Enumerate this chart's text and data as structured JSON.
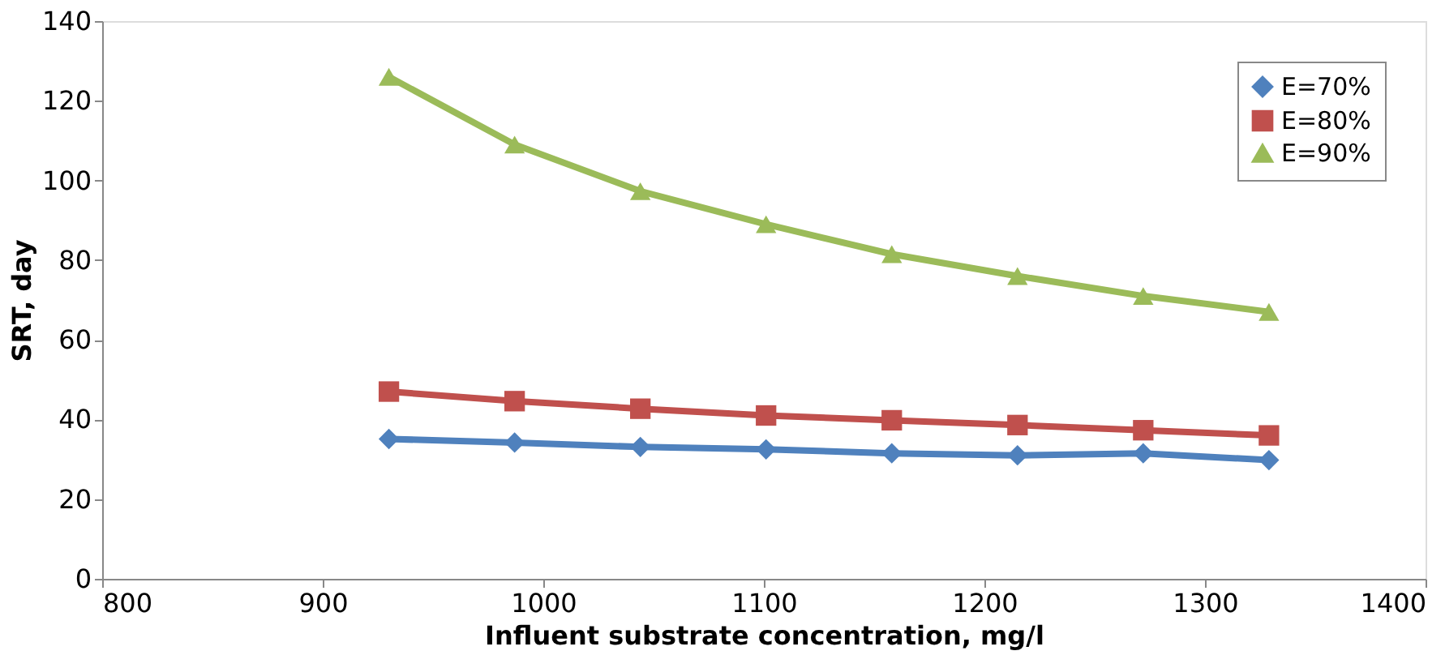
{
  "chart_data": {
    "type": "line",
    "xlabel": "Influent substrate concentration, mg/l",
    "ylabel": "SRT, day",
    "x": [
      930,
      987,
      1044,
      1101,
      1158,
      1215,
      1272,
      1329
    ],
    "series": [
      {
        "name": "E=70%",
        "color": "#4f81bd",
        "marker": "diamond",
        "values": [
          35.1,
          34.2,
          33.1,
          32.5,
          31.5,
          31,
          31.5,
          29.8
        ]
      },
      {
        "name": "E=80%",
        "color": "#c0504d",
        "marker": "square",
        "values": [
          47,
          44.6,
          42.7,
          41,
          39.8,
          38.6,
          37.3,
          36
        ]
      },
      {
        "name": "E=90%",
        "color": "#9bbb59",
        "marker": "triangle",
        "values": [
          126,
          109,
          97.3,
          89,
          81.5,
          76,
          71,
          67
        ]
      }
    ],
    "xlim": [
      800,
      1400
    ],
    "xticks": [
      800,
      900,
      1000,
      1100,
      1200,
      1300,
      1400
    ],
    "ylim": [
      0,
      140
    ],
    "yticks": [
      0,
      20,
      40,
      60,
      80,
      100,
      120,
      140
    ],
    "grid": false,
    "legend": "top right",
    "line_style": "solid"
  }
}
